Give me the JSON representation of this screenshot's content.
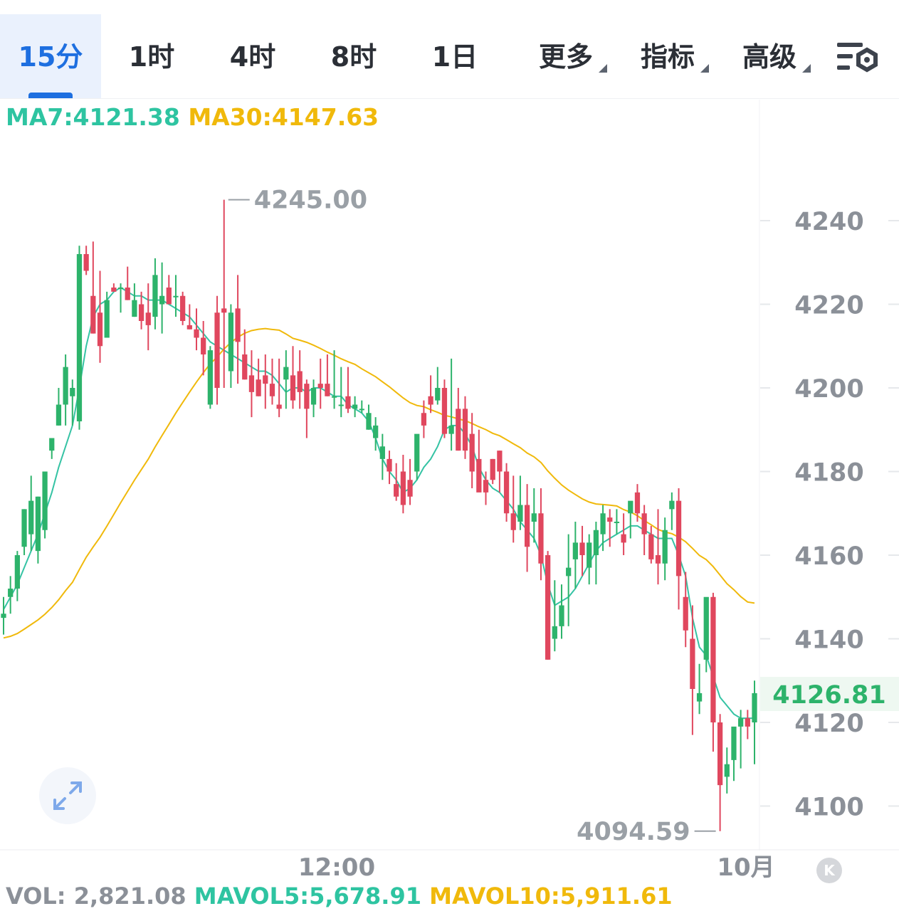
{
  "tabs": [
    {
      "label": "15分",
      "active": true
    },
    {
      "label": "1时"
    },
    {
      "label": "4时"
    },
    {
      "label": "8时"
    },
    {
      "label": "1日"
    },
    {
      "label": "更多",
      "dropdown": true
    },
    {
      "label": "指标",
      "dropdown": true
    },
    {
      "label": "高级",
      "dropdown": true
    }
  ],
  "settings_icon": "chart-settings-icon",
  "indicators": {
    "ma7": "MA7:4121.38",
    "ma30": "MA30:4147.63",
    "vol": "VOL: 2,821.08",
    "mavol5": "MAVOL5:5,678.91",
    "mavol10": "MAVOL10:5,911.61"
  },
  "colors": {
    "up": "#2db36b",
    "down": "#e0475e",
    "ma7": "#35c3a4",
    "ma30": "#f0b90b",
    "accent": "#1e6fe0"
  },
  "expand_icon": "expand-arrows-icon",
  "k_button": "K",
  "chart_data": {
    "type": "candlestick",
    "y_ticks": [
      4240,
      4220,
      4200,
      4180,
      4160,
      4140,
      4120,
      4100
    ],
    "y_range": [
      4090,
      4257
    ],
    "x_labels": [
      "12:00",
      "10月"
    ],
    "high_marker": "4245.00",
    "low_marker": "4094.59",
    "last_price": "4126.81",
    "series_ma7": "MA7",
    "series_ma30": "MA30",
    "candles": [
      [
        4145,
        4150,
        4146,
        4141
      ],
      [
        4150,
        4155,
        4152,
        4146
      ],
      [
        4152,
        4161,
        4160,
        4149
      ],
      [
        4162,
        4171,
        4171,
        4160
      ],
      [
        4165,
        4179,
        4173,
        4161
      ],
      [
        4161,
        4174,
        4174,
        4158
      ],
      [
        4166,
        4180,
        4180,
        4164
      ],
      [
        4185,
        4188,
        4188,
        4183
      ],
      [
        4191,
        4200,
        4196,
        4191
      ],
      [
        4196,
        4208,
        4205,
        4191
      ],
      [
        4198,
        4202,
        4200,
        4191
      ],
      [
        4192,
        4234,
        4232,
        4190
      ],
      [
        4232,
        4234,
        4228,
        4227
      ],
      [
        4222,
        4235,
        4213,
        4213
      ],
      [
        4218,
        4228,
        4210,
        4206
      ],
      [
        4212,
        4223,
        4221,
        4212
      ],
      [
        4224,
        4225,
        4223,
        4223
      ],
      [
        4224,
        4225,
        4224,
        4218
      ],
      [
        4224,
        4229,
        4221,
        4221
      ],
      [
        4217,
        4225,
        4221,
        4217
      ],
      [
        4220,
        4223,
        4216,
        4214
      ],
      [
        4218,
        4225,
        4215,
        4209
      ],
      [
        4217,
        4231,
        4227,
        4214
      ],
      [
        4220,
        4230,
        4222,
        4213
      ],
      [
        4224,
        4227,
        4220,
        4220
      ],
      [
        4222,
        4227,
        4222,
        4217
      ],
      [
        4222,
        4223,
        4216,
        4215
      ],
      [
        4215,
        4220,
        4214,
        4214
      ],
      [
        4214,
        4219,
        4212,
        4209
      ],
      [
        4212,
        4216,
        4208,
        4203
      ],
      [
        4196,
        4210,
        4209,
        4195
      ],
      [
        4218,
        4222,
        4200,
        4196
      ],
      [
        4219,
        4245,
        4218,
        4200
      ],
      [
        4204,
        4220,
        4218,
        4200
      ],
      [
        4219,
        4227,
        4211,
        4201
      ],
      [
        4208,
        4214,
        4202,
        4202
      ],
      [
        4203,
        4209,
        4199,
        4193
      ],
      [
        4202,
        4207,
        4198,
        4198
      ],
      [
        4203,
        4208,
        4201,
        4195
      ],
      [
        4201,
        4207,
        4198,
        4196
      ],
      [
        4196,
        4207,
        4195,
        4193
      ],
      [
        4202,
        4209,
        4205,
        4195
      ],
      [
        4203,
        4210,
        4197,
        4195
      ],
      [
        4204,
        4209,
        4199,
        4195
      ],
      [
        4201,
        4202,
        4195,
        4188
      ],
      [
        4196,
        4202,
        4200,
        4193
      ],
      [
        4201,
        4207,
        4200,
        4195
      ],
      [
        4201,
        4208,
        4198,
        4198
      ],
      [
        4198,
        4209,
        4198,
        4195
      ],
      [
        4196,
        4205,
        4196,
        4193
      ],
      [
        4198,
        4205,
        4195,
        4194
      ],
      [
        4195,
        4198,
        4196,
        4193
      ],
      [
        4195,
        4197,
        4195,
        4194
      ],
      [
        4190,
        4196,
        4194,
        4190
      ],
      [
        4188,
        4193,
        4191,
        4185
      ],
      [
        4183,
        4189,
        4186,
        4178
      ],
      [
        4183,
        4185,
        4180,
        4177
      ],
      [
        4177,
        4182,
        4174,
        4173
      ],
      [
        4180,
        4184,
        4172,
        4170
      ],
      [
        4178,
        4183,
        4174,
        4172
      ],
      [
        4180,
        4185,
        4189,
        4178
      ],
      [
        4194,
        4197,
        4191,
        4188
      ],
      [
        4198,
        4203,
        4196,
        4194
      ],
      [
        4197,
        4205,
        4200,
        4196
      ],
      [
        4200,
        4202,
        4189,
        4188
      ],
      [
        4189,
        4207,
        4191,
        4185
      ],
      [
        4195,
        4200,
        4185,
        4185
      ],
      [
        4195,
        4198,
        4185,
        4183
      ],
      [
        4189,
        4194,
        4180,
        4176
      ],
      [
        4183,
        4190,
        4175,
        4176
      ],
      [
        4178,
        4180,
        4175,
        4172
      ],
      [
        4183,
        4183,
        4178,
        4177
      ],
      [
        4185,
        4185,
        4180,
        4175
      ],
      [
        4180,
        4182,
        4170,
        4168
      ],
      [
        4170,
        4179,
        4166,
        4163
      ],
      [
        4168,
        4179,
        4172,
        4166
      ],
      [
        4172,
        4177,
        4162,
        4156
      ],
      [
        4168,
        4176,
        4170,
        4163
      ],
      [
        4170,
        4176,
        4158,
        4154
      ],
      [
        4160,
        4161,
        4135,
        4135
      ],
      [
        4140,
        4154,
        4143,
        4137
      ],
      [
        4143,
        4153,
        4148,
        4140
      ],
      [
        4155,
        4165,
        4157,
        4143
      ],
      [
        4159,
        4168,
        4163,
        4152
      ],
      [
        4163,
        4167,
        4160,
        4155
      ],
      [
        4157,
        4165,
        4163,
        4153
      ],
      [
        4160,
        4168,
        4166,
        4153
      ],
      [
        4165,
        4172,
        4170,
        4161
      ],
      [
        4169,
        4171,
        4168,
        4162
      ],
      [
        4168,
        4171,
        4168,
        4165
      ],
      [
        4165,
        4170,
        4163,
        4160
      ],
      [
        4170,
        4172,
        4173,
        4164
      ],
      [
        4175,
        4177,
        4170,
        4168
      ],
      [
        4170,
        4172,
        4165,
        4160
      ],
      [
        4165,
        4167,
        4159,
        4158
      ],
      [
        4160,
        4171,
        4158,
        4153
      ],
      [
        4158,
        4169,
        4166,
        4154
      ],
      [
        4171,
        4175,
        4173,
        4166
      ],
      [
        4173,
        4176,
        4155,
        4147
      ],
      [
        4150,
        4156,
        4142,
        4138
      ],
      [
        4140,
        4148,
        4128,
        4117
      ],
      [
        4125,
        4134,
        4127,
        4122
      ],
      [
        4135,
        4148,
        4150,
        4132
      ],
      [
        4150,
        4151,
        4120,
        4113
      ],
      [
        4120,
        4122,
        4105,
        4094
      ],
      [
        4107,
        4114,
        4110,
        4103
      ],
      [
        4111,
        4114,
        4119,
        4106
      ],
      [
        4119,
        4123,
        4121,
        4109
      ],
      [
        4121,
        4123,
        4119,
        4116
      ],
      [
        4120,
        4130,
        4127,
        4110
      ]
    ],
    "ma7_values": [
      4147,
      4150,
      4153,
      4157,
      4161,
      4165,
      4170,
      4175,
      4181,
      4186,
      4191,
      4200,
      4210,
      4217,
      4220,
      4221,
      4223,
      4224,
      4223,
      4222,
      4222,
      4221,
      4221,
      4221,
      4220,
      4219,
      4218,
      4217,
      4215,
      4213,
      4211,
      4210,
      4209,
      4208,
      4207,
      4206,
      4205,
      4204,
      4204,
      4203,
      4201,
      4199,
      4200,
      4200,
      4199,
      4200,
      4200,
      4199,
      4198,
      4198,
      4196,
      4195,
      4194,
      4192,
      4188,
      4183,
      4180,
      4178,
      4175,
      4176,
      4178,
      4181,
      4183,
      4186,
      4190,
      4191,
      4191,
      4189,
      4186,
      4181,
      4178,
      4176,
      4175,
      4173,
      4171,
      4168,
      4166,
      4164,
      4160,
      4153,
      4148,
      4149,
      4150,
      4152,
      4155,
      4158,
      4161,
      4163,
      4164,
      4165,
      4166,
      4167,
      4167,
      4166,
      4165,
      4164,
      4164,
      4164,
      4160,
      4155,
      4145,
      4138,
      4136,
      4131,
      4126,
      4124,
      4122,
      4121,
      4121,
      4121
    ]
  }
}
